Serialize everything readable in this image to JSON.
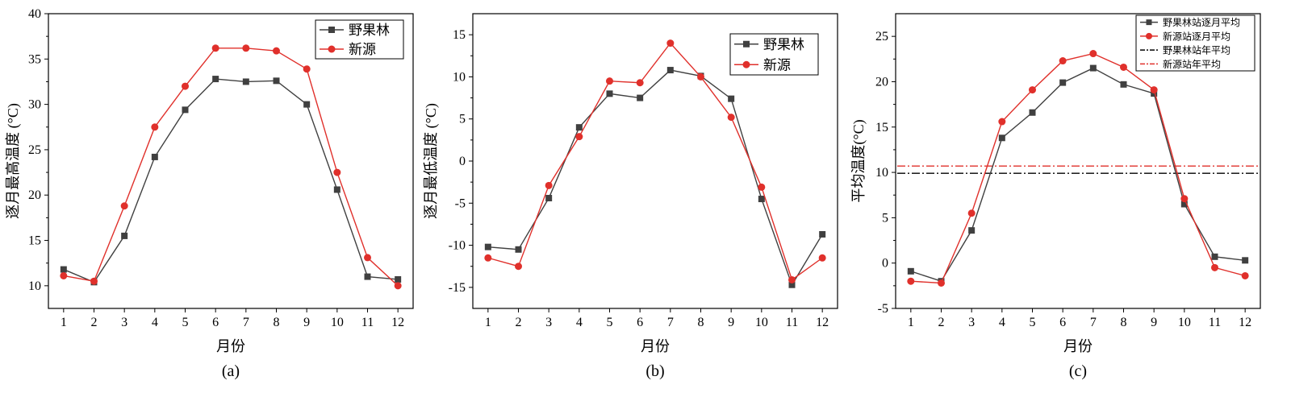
{
  "chart_data": [
    {
      "type": "line",
      "panel_label": "(a)",
      "xlabel": "月份",
      "ylabel": "逐月最高温度 (°C)",
      "categories": [
        "1",
        "2",
        "3",
        "4",
        "5",
        "6",
        "7",
        "8",
        "9",
        "10",
        "11",
        "12"
      ],
      "ylim": [
        7.5,
        40
      ],
      "yticks": [
        10,
        15,
        20,
        25,
        30,
        35,
        40
      ],
      "legend_position": "top-right",
      "series": [
        {
          "name": "野果林",
          "color": "#404040",
          "marker": "square",
          "values": [
            11.8,
            10.4,
            15.5,
            24.2,
            29.4,
            32.8,
            32.5,
            32.6,
            30.0,
            20.6,
            11.0,
            10.7
          ]
        },
        {
          "name": "新源",
          "color": "#e0302b",
          "marker": "circle",
          "values": [
            11.1,
            10.5,
            18.8,
            27.5,
            32.0,
            36.2,
            36.2,
            35.9,
            33.9,
            22.5,
            13.1,
            10.0
          ]
        }
      ]
    },
    {
      "type": "line",
      "panel_label": "(b)",
      "xlabel": "月份",
      "ylabel": "逐月最低温度 (°C)",
      "categories": [
        "1",
        "2",
        "3",
        "4",
        "5",
        "6",
        "7",
        "8",
        "9",
        "10",
        "11",
        "12"
      ],
      "ylim": [
        -17.5,
        17.5
      ],
      "yticks": [
        -15,
        -10,
        -5,
        0,
        5,
        10,
        15
      ],
      "legend_position": "top-right",
      "series": [
        {
          "name": "野果林",
          "color": "#404040",
          "marker": "square",
          "values": [
            -10.2,
            -10.5,
            -4.4,
            4.0,
            8.0,
            7.5,
            10.8,
            10.1,
            7.4,
            -4.5,
            -14.7,
            -8.7
          ]
        },
        {
          "name": "新源",
          "color": "#e0302b",
          "marker": "circle",
          "values": [
            -11.5,
            -12.5,
            -2.9,
            2.9,
            9.5,
            9.3,
            14.0,
            10.0,
            5.2,
            -3.1,
            -14.1,
            -11.5
          ]
        }
      ]
    },
    {
      "type": "line",
      "panel_label": "(c)",
      "xlabel": "月份",
      "ylabel": "平均温度(°C)",
      "categories": [
        "1",
        "2",
        "3",
        "4",
        "5",
        "6",
        "7",
        "8",
        "9",
        "10",
        "11",
        "12"
      ],
      "ylim": [
        -5,
        27.5
      ],
      "yticks": [
        -5,
        0,
        5,
        10,
        15,
        20,
        25
      ],
      "legend_position": "top-right",
      "series": [
        {
          "name": "野果林站逐月平均",
          "color": "#404040",
          "marker": "square",
          "values": [
            -0.9,
            -2.0,
            3.6,
            13.8,
            16.6,
            19.9,
            21.5,
            19.7,
            18.7,
            6.5,
            0.7,
            0.3
          ]
        },
        {
          "name": "新源站逐月平均",
          "color": "#e0302b",
          "marker": "circle",
          "values": [
            -2.0,
            -2.2,
            5.5,
            15.6,
            19.1,
            22.3,
            23.1,
            21.6,
            19.1,
            7.1,
            -0.5,
            -1.4
          ]
        }
      ],
      "reference_lines": [
        {
          "name": "野果林站年平均",
          "color": "#000000",
          "value": 9.9,
          "style": "dash-dot"
        },
        {
          "name": "新源站年平均",
          "color": "#e0302b",
          "value": 10.7,
          "style": "dash-dot"
        }
      ]
    }
  ]
}
